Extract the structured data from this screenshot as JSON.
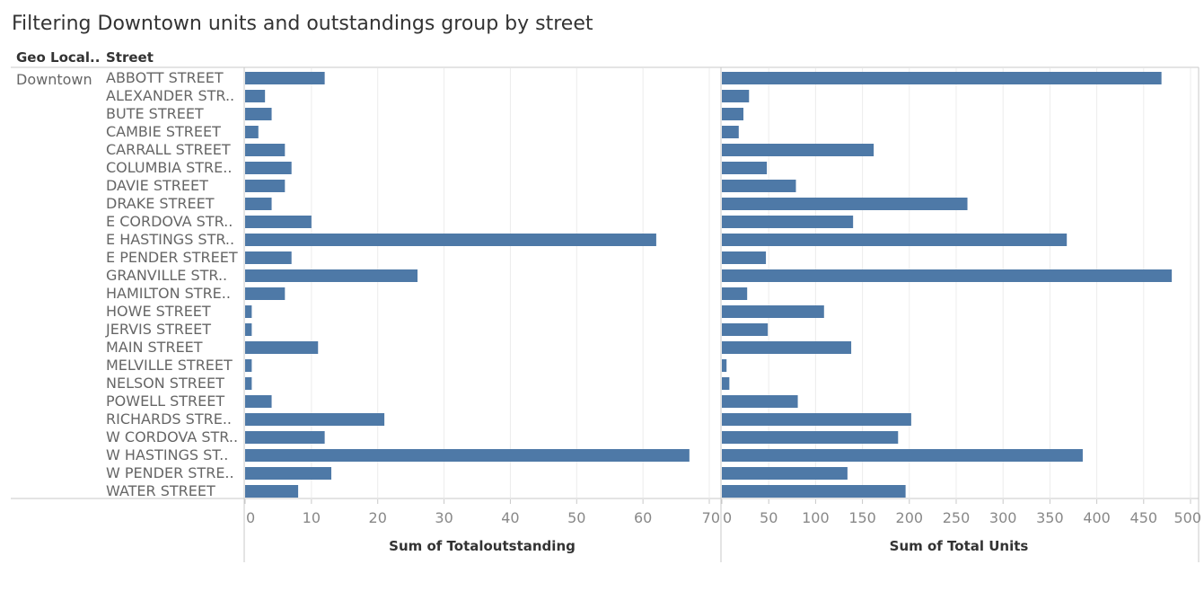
{
  "title": "Filtering Downtown units and outstandings group by street",
  "headers": {
    "geo": "Geo Local..",
    "street": "Street"
  },
  "geo_value": "Downtown",
  "colors": {
    "bar": "#4e79a7",
    "grid": "#ececec",
    "axis": "#c8c8c8"
  },
  "chart_data": [
    {
      "type": "bar",
      "orientation": "horizontal",
      "categories": [
        "ABBOTT STREET",
        "ALEXANDER STR..",
        "BUTE STREET",
        "CAMBIE STREET",
        "CARRALL STREET",
        "COLUMBIA STRE..",
        "DAVIE STREET",
        "DRAKE STREET",
        "E CORDOVA STR..",
        "E HASTINGS STR..",
        "E PENDER STREET",
        "GRANVILLE STR..",
        "HAMILTON STRE..",
        "HOWE STREET",
        "JERVIS STREET",
        "MAIN STREET",
        "MELVILLE STREET",
        "NELSON STREET",
        "POWELL STREET",
        "RICHARDS STRE..",
        "W CORDOVA STR..",
        "W HASTINGS ST..",
        "W PENDER STRE..",
        "WATER STREET"
      ],
      "values": [
        12,
        3,
        4,
        2,
        6,
        7,
        6,
        4,
        10,
        62,
        7,
        26,
        6,
        1,
        1,
        11,
        1,
        1,
        4,
        21,
        12,
        67,
        13,
        8
      ],
      "xlabel": "Sum of Totaloutstanding",
      "xlim": [
        0,
        70
      ],
      "ticks": [
        0,
        10,
        20,
        30,
        40,
        50,
        60,
        70
      ],
      "grid": true
    },
    {
      "type": "bar",
      "orientation": "horizontal",
      "categories": [
        "ABBOTT STREET",
        "ALEXANDER STR..",
        "BUTE STREET",
        "CAMBIE STREET",
        "CARRALL STREET",
        "COLUMBIA STRE..",
        "DAVIE STREET",
        "DRAKE STREET",
        "E CORDOVA STR..",
        "E HASTINGS STR..",
        "E PENDER STREET",
        "GRANVILLE STR..",
        "HAMILTON STRE..",
        "HOWE STREET",
        "JERVIS STREET",
        "MAIN STREET",
        "MELVILLE STREET",
        "NELSON STREET",
        "POWELL STREET",
        "RICHARDS STRE..",
        "W CORDOVA STR..",
        "W HASTINGS ST..",
        "W PENDER STRE..",
        "WATER STREET"
      ],
      "values": [
        469,
        29,
        23,
        18,
        162,
        48,
        79,
        262,
        140,
        368,
        47,
        480,
        27,
        109,
        49,
        138,
        5,
        8,
        81,
        202,
        188,
        385,
        134,
        196
      ],
      "xlabel": "Sum of Total Units",
      "xlim": [
        0,
        500
      ],
      "ticks": [
        0,
        50,
        100,
        150,
        200,
        250,
        300,
        350,
        400,
        450,
        500
      ],
      "grid": true
    }
  ]
}
